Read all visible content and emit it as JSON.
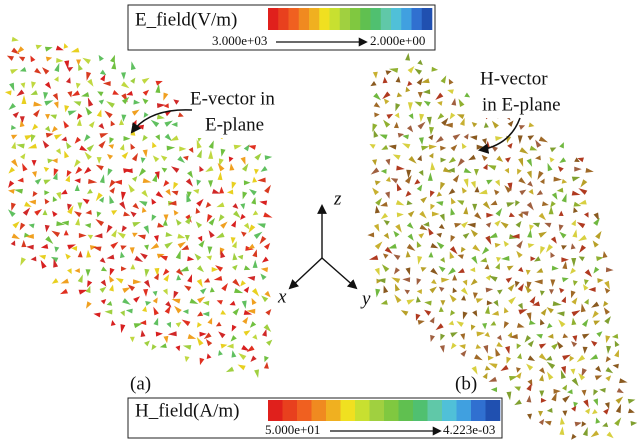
{
  "e_legend": {
    "title": "E_field(V/m)",
    "min_label": "3.000e+03",
    "max_label": "2.000e+00"
  },
  "h_legend": {
    "title": "H_field(A/m)",
    "min_label": "5.000e+01",
    "max_label": "4.223e-03"
  },
  "annotations": {
    "e_vector": [
      "E-vector in",
      "E-plane"
    ],
    "h_vector": [
      "H-vector",
      "in E-plane"
    ]
  },
  "axes": {
    "z": "z",
    "x": "x",
    "y": "y"
  },
  "panels": {
    "a": "(a)",
    "b": "(b)"
  }
}
